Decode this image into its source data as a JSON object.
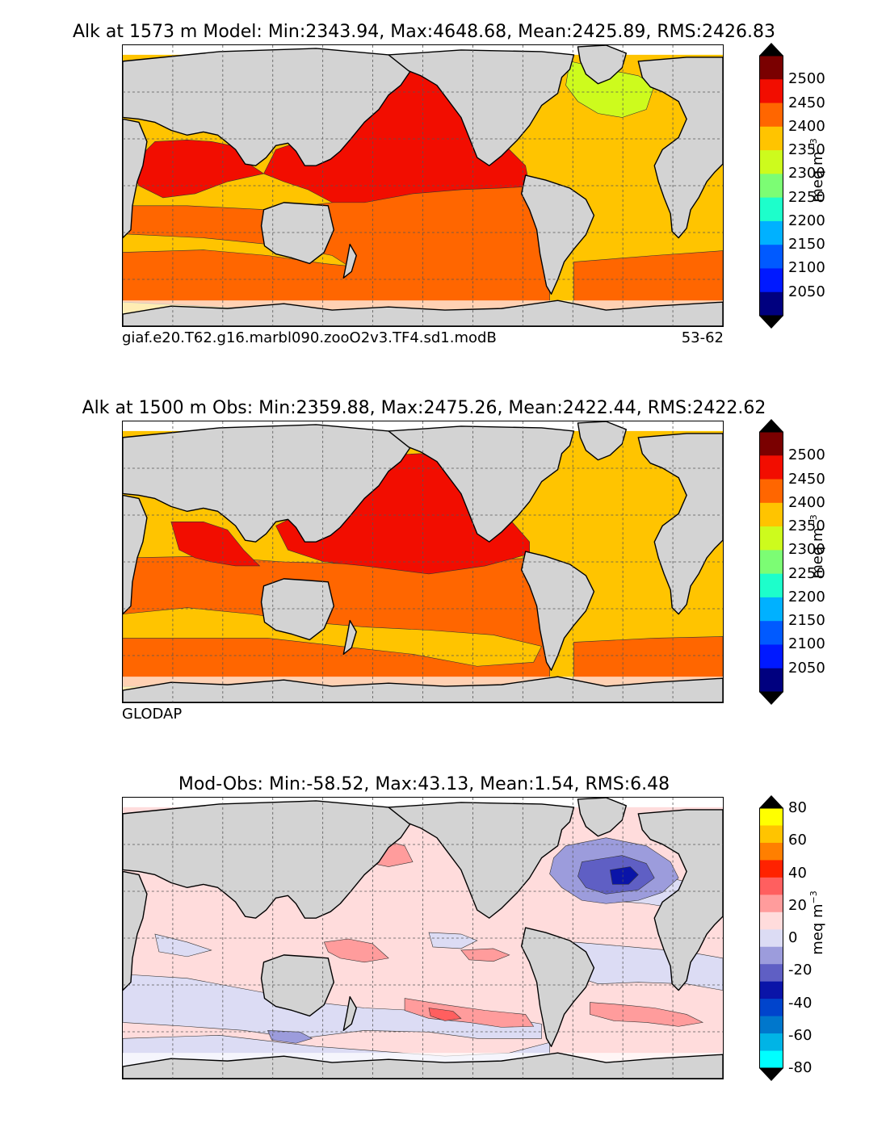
{
  "panels": [
    {
      "title": "Alk at 1573 m Model: Min:2343.94, Max:4648.68, Mean:2425.89, RMS:2426.83",
      "left_caption": "giaf.e20.T62.g16.marbl090.zooO2v3.TF4.sd1.modB",
      "right_caption": "53-62",
      "colorbar": {
        "ticks": [
          "2500",
          "2450",
          "2400",
          "2350",
          "2300",
          "2250",
          "2200",
          "2150",
          "2100",
          "2050"
        ],
        "unit_base": "meq m",
        "unit_exp": "−3",
        "colors": [
          "#7a0000",
          "#f20d00",
          "#ff6600",
          "#ffc400",
          "#cdfb1d",
          "#7cfd74",
          "#1dfecb",
          "#00b1ff",
          "#005aff",
          "#0019ff",
          "#00007f"
        ]
      },
      "scheme": "model"
    },
    {
      "title": "Alk at 1500 m Obs: Min:2359.88, Max:2475.26, Mean:2422.44, RMS:2422.62",
      "left_caption": "GLODAP",
      "right_caption": "",
      "colorbar": {
        "ticks": [
          "2500",
          "2450",
          "2400",
          "2350",
          "2300",
          "2250",
          "2200",
          "2150",
          "2100",
          "2050"
        ],
        "unit_base": "meq m",
        "unit_exp": "−3",
        "colors": [
          "#7a0000",
          "#f20d00",
          "#ff6600",
          "#ffc400",
          "#cdfb1d",
          "#7cfd74",
          "#1dfecb",
          "#00b1ff",
          "#005aff",
          "#0019ff",
          "#00007f"
        ]
      },
      "scheme": "obs"
    },
    {
      "title": "Mod-Obs: Min:-58.52, Max:43.13, Mean:1.54, RMS:6.48",
      "left_caption": "",
      "right_caption": "",
      "colorbar": {
        "ticks": [
          "80",
          "60",
          "40",
          "20",
          "0",
          "-20",
          "-40",
          "-60",
          "-80"
        ],
        "unit_base": "meq m",
        "unit_exp": "−3",
        "colors": [
          "#ffff00",
          "#ffc400",
          "#ff7f00",
          "#ff2200",
          "#ff5f5f",
          "#ff9c9c",
          "#ffdcdc",
          "#dcdcf4",
          "#9c9cdc",
          "#5f5fc4",
          "#0a14a8",
          "#0044cc",
          "#0077cc",
          "#00b4e6",
          "#00ffff"
        ]
      },
      "scheme": "diff"
    }
  ],
  "palette": {
    "land": "#d3d3d3",
    "missing": "#ffffff",
    "grid": "#555555"
  }
}
